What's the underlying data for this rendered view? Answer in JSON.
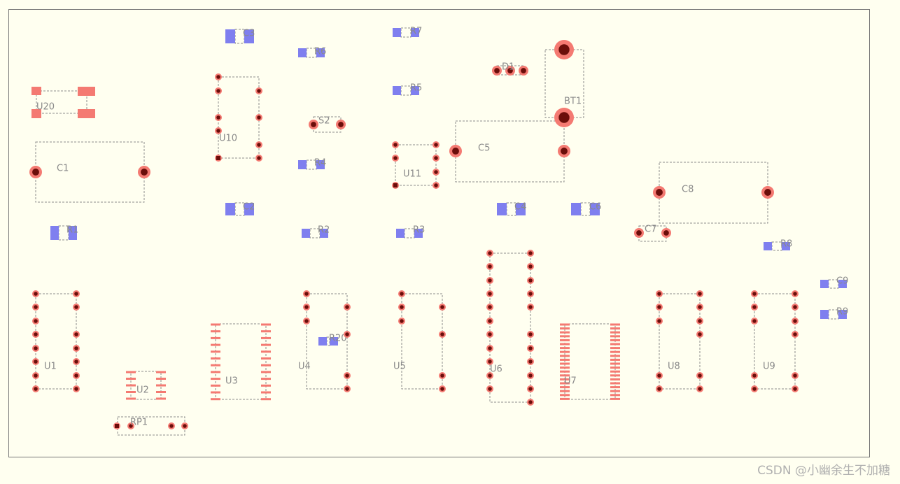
{
  "components": [
    {
      "label": "C3"
    },
    {
      "label": "R6"
    },
    {
      "label": "R7"
    },
    {
      "label": "R5"
    },
    {
      "label": "R4"
    },
    {
      "label": "C2"
    },
    {
      "label": "C4"
    },
    {
      "label": "C6"
    },
    {
      "label": "R1"
    },
    {
      "label": "R2"
    },
    {
      "label": "R3"
    },
    {
      "label": "R8"
    },
    {
      "label": "C9"
    },
    {
      "label": "R9"
    },
    {
      "label": "R20"
    },
    {
      "label": "U20"
    },
    {
      "label": "U1"
    },
    {
      "label": "U10"
    },
    {
      "label": "U11"
    },
    {
      "label": "U4"
    },
    {
      "label": "U5"
    },
    {
      "label": "U6"
    },
    {
      "label": "U8"
    },
    {
      "label": "U9"
    },
    {
      "label": "RP1"
    },
    {
      "label": "D1"
    },
    {
      "label": "S2"
    },
    {
      "label": "C7"
    },
    {
      "label": "C1"
    },
    {
      "label": "C5"
    },
    {
      "label": "C8"
    },
    {
      "label": "BT1"
    },
    {
      "label": "U2"
    },
    {
      "label": "U3"
    },
    {
      "label": "U7"
    }
  ],
  "watermark": "CSDN @小幽余生不加糖"
}
